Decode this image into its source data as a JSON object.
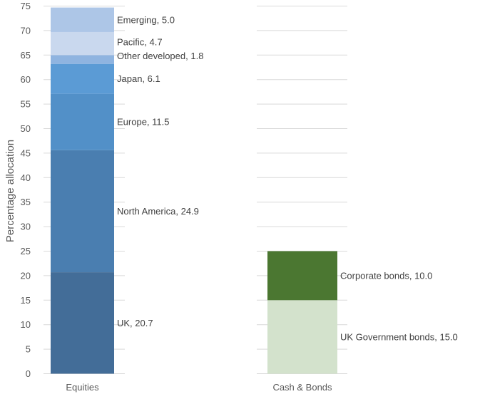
{
  "chart_data": {
    "type": "bar",
    "stacked": true,
    "ylabel": "Percentage allocation",
    "ylim": [
      0,
      75
    ],
    "yticks": [
      0,
      5,
      10,
      15,
      20,
      25,
      30,
      35,
      40,
      45,
      50,
      55,
      60,
      65,
      70,
      75
    ],
    "grid": true,
    "categories": [
      "Equities",
      "Cash & Bonds"
    ],
    "stacks": [
      {
        "category": "Equities",
        "segments": [
          {
            "label": "UK, 20.7",
            "value": 20.7,
            "color": "#436d98"
          },
          {
            "label": "North America, 24.9",
            "value": 24.9,
            "color": "#4a7eb0"
          },
          {
            "label": "Europe, 11.5",
            "value": 11.5,
            "color": "#5290c8"
          },
          {
            "label": "Japan, 6.1",
            "value": 6.1,
            "color": "#5b9bd5"
          },
          {
            "label": "Other developed, 1.8",
            "value": 1.8,
            "color": "#8fb4e0"
          },
          {
            "label": "Pacific, 4.7",
            "value": 4.7,
            "color": "#c9d8ee"
          },
          {
            "label": "Emerging, 5.0",
            "value": 5.0,
            "color": "#adc6e7"
          }
        ]
      },
      {
        "category": "Cash & Bonds",
        "segments": [
          {
            "label": "UK Government bonds, 15.0",
            "value": 15.0,
            "color": "#d3e2cc"
          },
          {
            "label": "Corporate bonds, 10.0",
            "value": 10.0,
            "color": "#4b7731"
          }
        ]
      }
    ]
  }
}
